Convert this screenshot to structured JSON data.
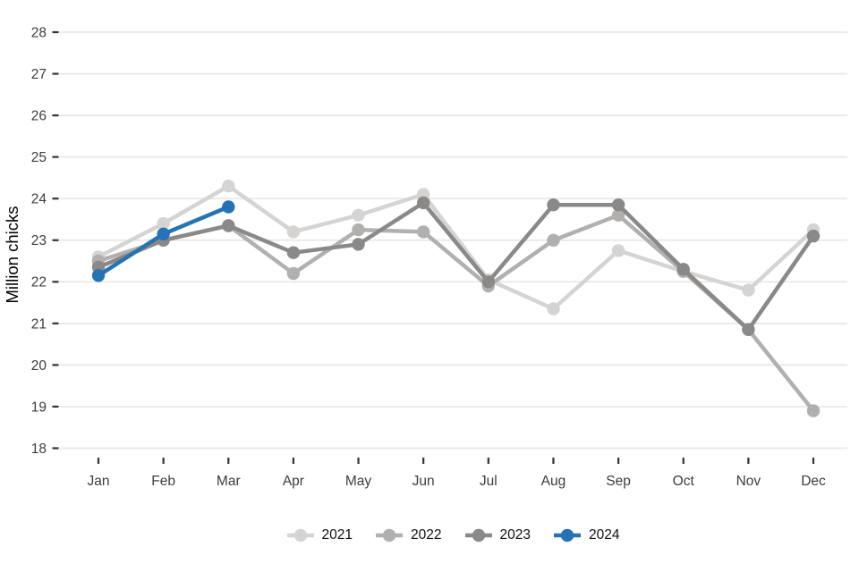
{
  "chart_data": {
    "type": "line",
    "title": "",
    "xlabel": "",
    "ylabel": "Million chicks",
    "categories": [
      "Jan",
      "Feb",
      "Mar",
      "Apr",
      "May",
      "Jun",
      "Jul",
      "Aug",
      "Sep",
      "Oct",
      "Nov",
      "Dec"
    ],
    "ylim": [
      18,
      28
    ],
    "yticks": [
      18,
      19,
      20,
      21,
      22,
      23,
      24,
      25,
      26,
      27,
      28
    ],
    "grid": "horizontal-only",
    "legend_position": "bottom-center",
    "series": [
      {
        "name": "2021",
        "color": "#d6d4d2",
        "values": [
          22.6,
          23.4,
          24.3,
          23.2,
          23.6,
          24.1,
          22.05,
          21.35,
          22.75,
          22.25,
          21.8,
          23.25
        ]
      },
      {
        "name": "2022",
        "color": "#b2b0ae",
        "values": [
          22.5,
          23.0,
          23.35,
          22.2,
          23.25,
          23.2,
          21.9,
          23.0,
          23.6,
          22.25,
          20.85,
          18.9
        ]
      },
      {
        "name": "2023",
        "color": "#8b8987",
        "values": [
          22.35,
          23.0,
          23.35,
          22.7,
          22.9,
          23.9,
          22.0,
          23.85,
          23.85,
          22.3,
          20.85,
          23.1
        ]
      },
      {
        "name": "2024",
        "color": "#2573b5",
        "values": [
          22.15,
          23.15,
          23.8,
          null,
          null,
          null,
          null,
          null,
          null,
          null,
          null,
          null
        ]
      }
    ]
  },
  "styles": {
    "background": "#ffffff",
    "grid_color": "#e8e7e5",
    "tick_color": "#333333",
    "tick_label_color": "#3d3d3d",
    "axis_title_color": "#000000",
    "legend_text_color": "#111111"
  }
}
